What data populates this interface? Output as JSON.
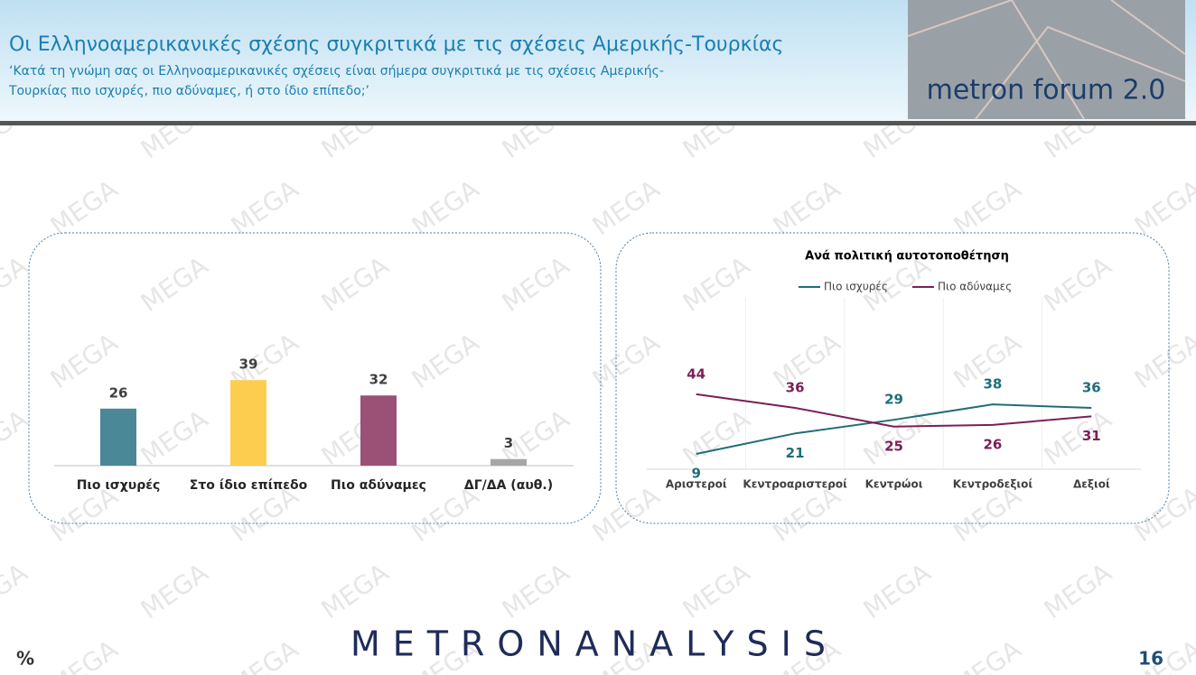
{
  "header": {
    "title": "Οι Ελληνοαμερικανικές σχέσης συγκριτικά με τις σχέσεις Αμερικής-Τουρκίας",
    "subtitle_lines": [
      "‘Κατά τη γνώμη σας οι Ελληνοαμερικανικές σχέσεις είναι σήμερα συγκριτικά με τις σχέσεις Αμερικής-",
      "Τουρκίας πιο ισχυρές, πιο αδύναμες, ή στο ίδιο επίπεδο;’"
    ],
    "logo": "metron forum 2.0"
  },
  "watermark": "MEGA",
  "chart_data": [
    {
      "type": "bar",
      "categories": [
        "Πιο ισχυρές",
        "Στο ίδιο επίπεδο",
        "Πιο αδύναμες",
        "ΔΓ/ΔΑ (αυθ.)"
      ],
      "values": [
        26,
        39,
        32,
        3
      ],
      "colors": [
        "#4a8797",
        "#fdcd4f",
        "#9a5175",
        "#a6a6a6"
      ]
    },
    {
      "type": "line",
      "title": "Ανά πολιτική αυτοτοποθέτηση",
      "categories": [
        "Αριστεροί",
        "Κεντροαριστεροί",
        "Κεντρώοι",
        "Κεντροδεξιοί",
        "Δεξιοί"
      ],
      "series": [
        {
          "name": "Πιο ισχυρές",
          "color": "#1f6e75",
          "values": [
            9,
            21,
            29,
            38,
            36
          ]
        },
        {
          "name": "Πιο αδύναμες",
          "color": "#7b1f55",
          "values": [
            44,
            36,
            25,
            26,
            31
          ]
        }
      ]
    }
  ],
  "footer": {
    "brand": "METRONANALYSIS",
    "unit": "%",
    "page": "16"
  }
}
